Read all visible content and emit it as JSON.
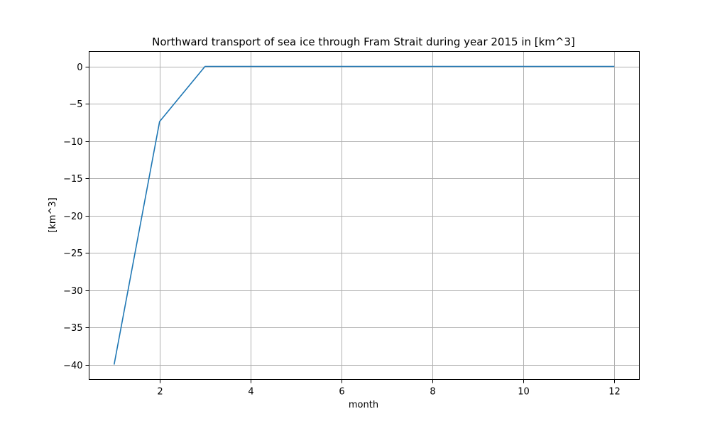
{
  "chart_data": {
    "type": "line",
    "title": "Northward transport of sea ice through Fram Strait during year 2015 in [km^3]",
    "xlabel": "month",
    "ylabel": "[km^3]",
    "xlim": [
      0.45,
      12.55
    ],
    "ylim": [
      -42,
      2
    ],
    "xticks": [
      2,
      4,
      6,
      8,
      10,
      12
    ],
    "xtick_labels": [
      "2",
      "4",
      "6",
      "8",
      "10",
      "12"
    ],
    "yticks": [
      0,
      -5,
      -10,
      -15,
      -20,
      -25,
      -30,
      -35,
      -40
    ],
    "ytick_labels": [
      "0",
      "−5",
      "−10",
      "−15",
      "−20",
      "−25",
      "−30",
      "−35",
      "−40"
    ],
    "grid": true,
    "series": [
      {
        "color": "#1f77b4",
        "x": [
          1,
          2,
          3,
          4,
          5,
          6,
          7,
          8,
          9,
          10,
          11,
          12
        ],
        "y": [
          -40,
          -7.4,
          0,
          0,
          0,
          0,
          0,
          0,
          0,
          0,
          0,
          0
        ]
      }
    ]
  }
}
